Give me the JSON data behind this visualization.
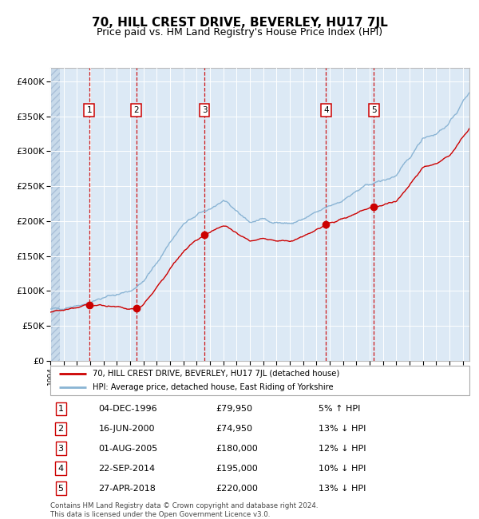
{
  "title": "70, HILL CREST DRIVE, BEVERLEY, HU17 7JL",
  "subtitle": "Price paid vs. HM Land Registry's House Price Index (HPI)",
  "title_fontsize": 11,
  "subtitle_fontsize": 9,
  "ylim": [
    0,
    420000
  ],
  "yticks": [
    0,
    50000,
    100000,
    150000,
    200000,
    250000,
    300000,
    350000,
    400000
  ],
  "ytick_labels": [
    "£0",
    "£50K",
    "£100K",
    "£150K",
    "£200K",
    "£250K",
    "£300K",
    "£350K",
    "£400K"
  ],
  "plot_bg_color": "#dce9f5",
  "grid_color": "#ffffff",
  "red_line_color": "#cc0000",
  "blue_line_color": "#8ab4d4",
  "marker_color": "#cc0000",
  "sale_dates_x": [
    1996.92,
    2000.46,
    2005.58,
    2014.72,
    2018.32
  ],
  "sale_prices_y": [
    79950,
    74950,
    180000,
    195000,
    220000
  ],
  "sale_labels": [
    "1",
    "2",
    "3",
    "4",
    "5"
  ],
  "legend_label_red": "70, HILL CREST DRIVE, BEVERLEY, HU17 7JL (detached house)",
  "legend_label_blue": "HPI: Average price, detached house, East Riding of Yorkshire",
  "table_data": [
    [
      "1",
      "04-DEC-1996",
      "£79,950",
      "5% ↑ HPI"
    ],
    [
      "2",
      "16-JUN-2000",
      "£74,950",
      "13% ↓ HPI"
    ],
    [
      "3",
      "01-AUG-2005",
      "£180,000",
      "12% ↓ HPI"
    ],
    [
      "4",
      "22-SEP-2014",
      "£195,000",
      "10% ↓ HPI"
    ],
    [
      "5",
      "27-APR-2018",
      "£220,000",
      "13% ↓ HPI"
    ]
  ],
  "footer": "Contains HM Land Registry data © Crown copyright and database right 2024.\nThis data is licensed under the Open Government Licence v3.0.",
  "xmin": 1994.0,
  "xmax": 2025.5,
  "hatch_end": 1994.7
}
